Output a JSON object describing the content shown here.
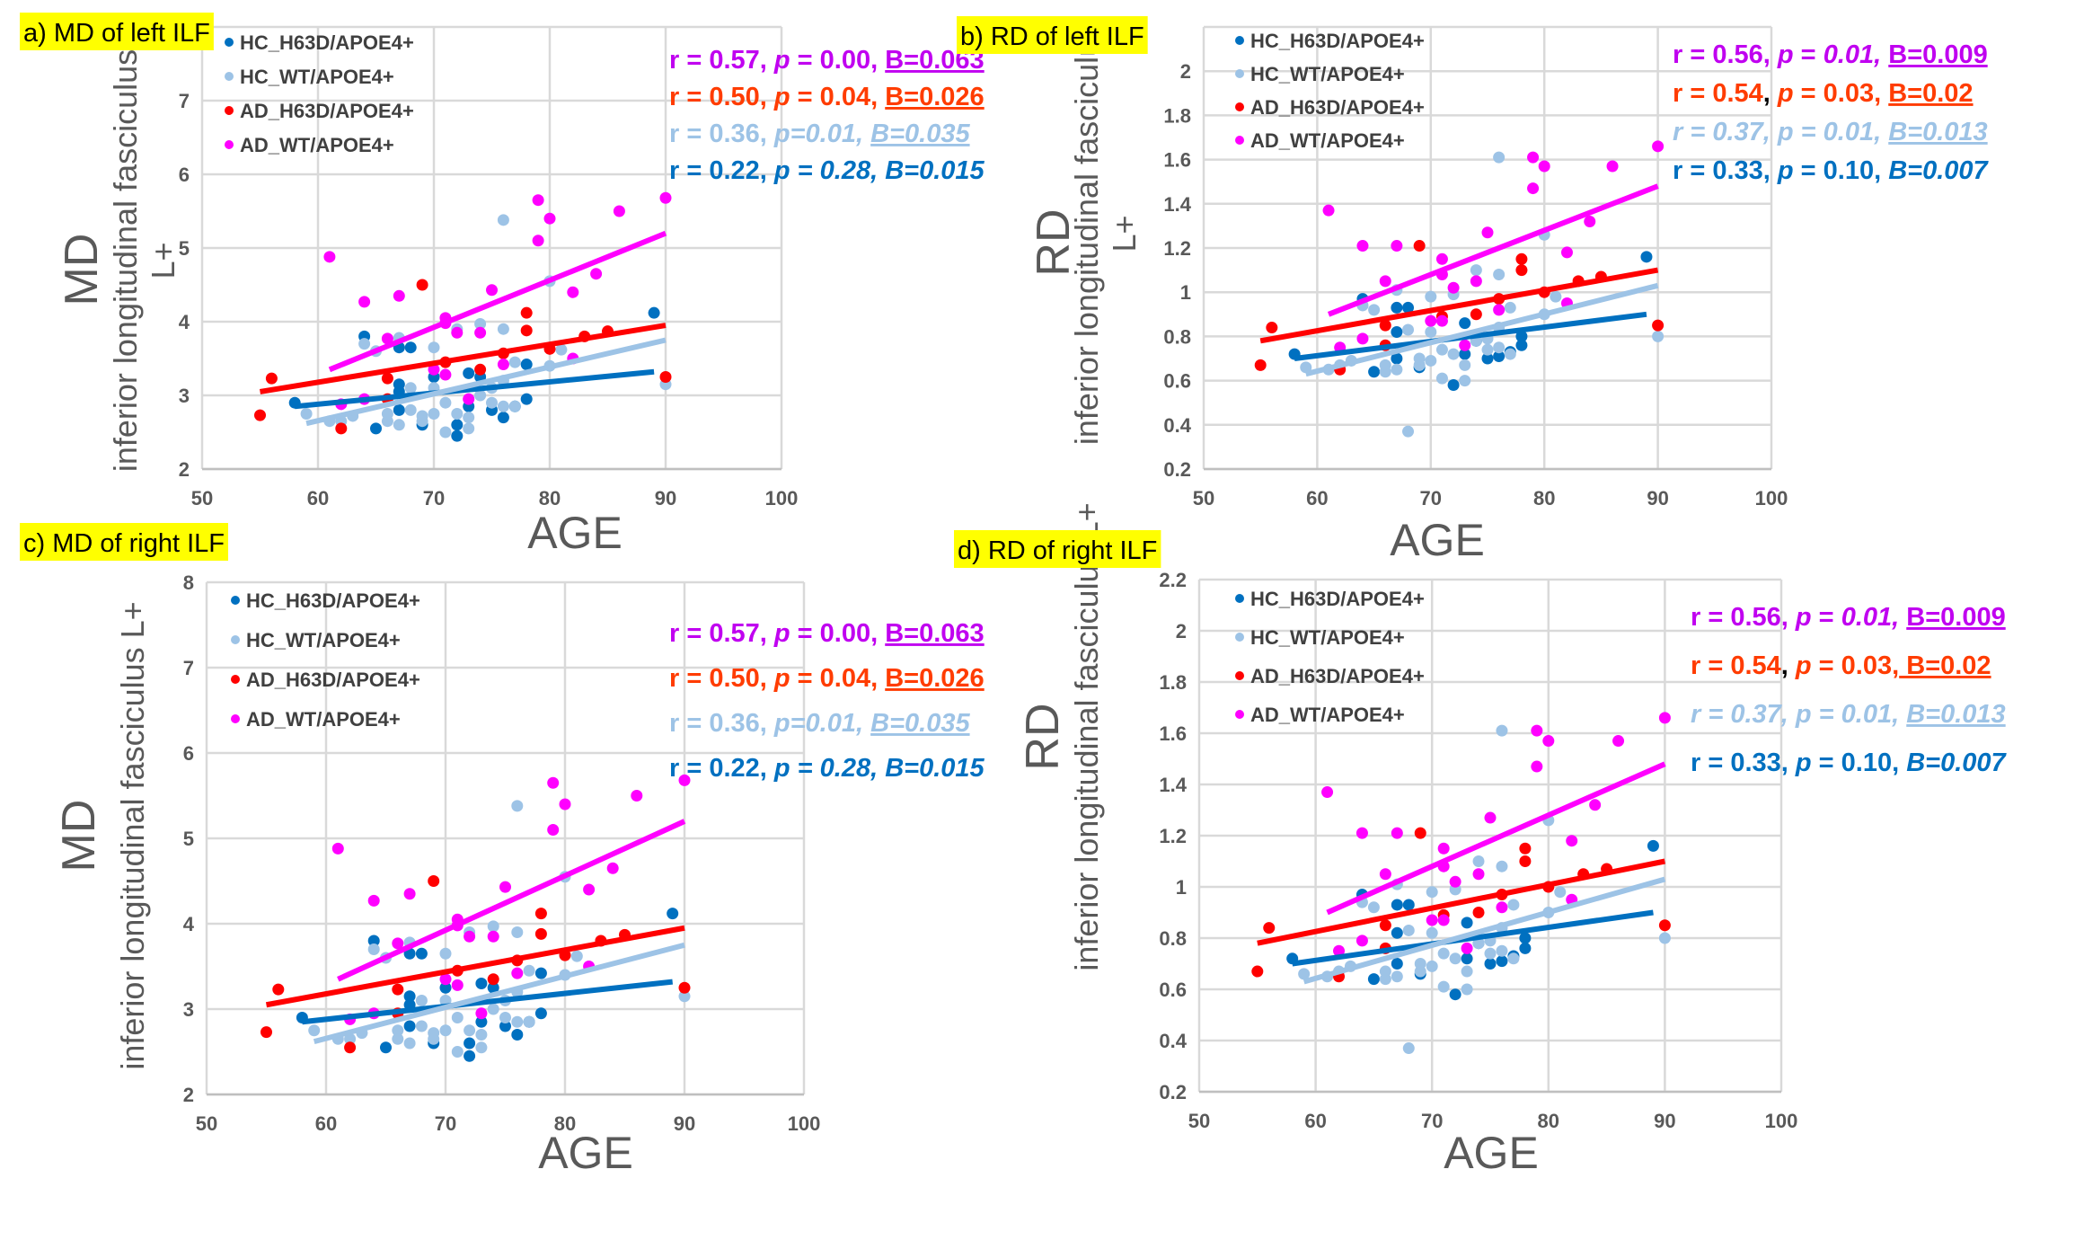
{
  "colors": {
    "HC_H63D": "#0070c0",
    "HC_WT": "#9dc3e6",
    "AD_H63D": "#ff0000",
    "AD_WT": "#ff00ff",
    "stat_AD_WT": "#c000f0",
    "stat_AD_H63D": "#ff3c00",
    "stat_HC_WT": "#9dc3e6",
    "stat_HC_H63D": "#0070c0",
    "title_bg": "#ffff00"
  },
  "chart_data": [
    {
      "id": "a",
      "type": "scatter",
      "title": "a) MD of left ILF",
      "ylabel_short": "MD",
      "ylabel": "inferior longitudinal fasciculus L+",
      "xlabel": "AGE",
      "xlim": [
        50,
        100
      ],
      "ylim": [
        2,
        8
      ],
      "xticks": [
        50,
        60,
        70,
        80,
        90,
        100
      ],
      "yticks": [
        2,
        3,
        4,
        5,
        6,
        7
      ],
      "grid": true,
      "legend_position": "top-left",
      "metric": "MD",
      "stats": [
        [
          {
            "t": "r = 0.57, ",
            "s": ""
          },
          {
            "t": "p",
            "s": "i"
          },
          {
            "t": " = 0.00, ",
            "s": ""
          },
          {
            "t": "B=0.063",
            "s": "u"
          }
        ],
        [
          {
            "t": "r = 0.50, ",
            "s": ""
          },
          {
            "t": "p",
            "s": "i"
          },
          {
            "t": " = 0.04, ",
            "s": ""
          },
          {
            "t": "B=0.026",
            "s": "u"
          }
        ],
        [
          {
            "t": "r = 0.36, ",
            "s": ""
          },
          {
            "t": "p=0.01, ",
            "s": "i"
          },
          {
            "t": "B=0.035",
            "s": "iu"
          }
        ],
        [
          {
            "t": "r = 0.22, ",
            "s": ""
          },
          {
            "t": "p",
            "s": "i"
          },
          {
            "t": " = 0.28, ",
            "s": "i"
          },
          {
            "t": "B=0.015",
            "s": "i"
          }
        ]
      ]
    },
    {
      "id": "b",
      "type": "scatter",
      "title": "b) RD of left ILF",
      "ylabel_short": "RD",
      "ylabel": "inferior longitudinal fasciculus L+",
      "xlabel": "AGE",
      "xlim": [
        50,
        100
      ],
      "ylim": [
        0.2,
        2.2
      ],
      "xticks": [
        50,
        60,
        70,
        80,
        90,
        100
      ],
      "yticks": [
        0.2,
        0.4,
        0.6,
        0.8,
        1,
        1.2,
        1.4,
        1.6,
        1.8,
        2
      ],
      "grid": true,
      "legend_position": "top-left",
      "metric": "RD",
      "stats": [
        [
          {
            "t": "r = 0.56, ",
            "s": ""
          },
          {
            "t": "p",
            "s": "i"
          },
          {
            "t": " = ",
            "s": ""
          },
          {
            "t": "0.01, ",
            "s": "i"
          },
          {
            "t": "B=0.009",
            "s": "u"
          }
        ],
        [
          {
            "t": "r = 0.54",
            "s": ""
          },
          {
            "t": ", ",
            "s": "k"
          },
          {
            "t": "p",
            "s": "i"
          },
          {
            "t": " = 0.03, ",
            "s": ""
          },
          {
            "t": "B=0.02",
            "s": "u"
          }
        ],
        [
          {
            "t": "r = 0.37, p = 0.01, ",
            "s": "i"
          },
          {
            "t": "B=0.013",
            "s": "iu"
          }
        ],
        [
          {
            "t": "r = 0.33, ",
            "s": ""
          },
          {
            "t": "p",
            "s": "i"
          },
          {
            "t": " = 0.10, ",
            "s": ""
          },
          {
            "t": "B=0.007",
            "s": "i"
          }
        ]
      ]
    },
    {
      "id": "c",
      "type": "scatter",
      "title": "c) MD of right ILF",
      "ylabel_short": "MD",
      "ylabel": "inferior longitudinal fasciculus L+",
      "xlabel": "AGE",
      "xlim": [
        50,
        100
      ],
      "ylim": [
        2,
        8
      ],
      "xticks": [
        50,
        60,
        70,
        80,
        90,
        100
      ],
      "yticks": [
        2,
        3,
        4,
        5,
        6,
        7,
        8
      ],
      "grid": true,
      "legend_position": "top-left",
      "metric": "MD",
      "stats": [
        [
          {
            "t": "r = 0.57, ",
            "s": ""
          },
          {
            "t": "p",
            "s": "i"
          },
          {
            "t": " = 0.00, ",
            "s": ""
          },
          {
            "t": "B=0.063",
            "s": "u"
          }
        ],
        [
          {
            "t": "r = 0.50, ",
            "s": ""
          },
          {
            "t": "p",
            "s": "i"
          },
          {
            "t": " = 0.04, ",
            "s": ""
          },
          {
            "t": "B=0.026",
            "s": "u"
          }
        ],
        [
          {
            "t": "r = 0.36, ",
            "s": ""
          },
          {
            "t": "p=0.01, ",
            "s": "i"
          },
          {
            "t": "B=0.035",
            "s": "iu"
          }
        ],
        [
          {
            "t": "r = 0.22, ",
            "s": ""
          },
          {
            "t": "p",
            "s": "i"
          },
          {
            "t": " = 0.28, ",
            "s": "i"
          },
          {
            "t": "B=0.015",
            "s": "i"
          }
        ]
      ]
    },
    {
      "id": "d",
      "type": "scatter",
      "title": "d) RD of right ILF",
      "ylabel_short": "RD",
      "ylabel": "inferior longitudinal fasciculus L+",
      "xlabel": "AGE",
      "xlim": [
        50,
        100
      ],
      "ylim": [
        0.2,
        2.2
      ],
      "xticks": [
        50,
        60,
        70,
        80,
        90,
        100
      ],
      "yticks": [
        0.2,
        0.4,
        0.6,
        0.8,
        1,
        1.2,
        1.4,
        1.6,
        1.8,
        2,
        2.2
      ],
      "grid": true,
      "legend_position": "top-left",
      "metric": "RD",
      "stats": [
        [
          {
            "t": "r = 0.56, ",
            "s": ""
          },
          {
            "t": "p",
            "s": "i"
          },
          {
            "t": " = ",
            "s": ""
          },
          {
            "t": "0.01, ",
            "s": "i"
          },
          {
            "t": "B=0.009",
            "s": "u"
          }
        ],
        [
          {
            "t": "r = 0.54",
            "s": ""
          },
          {
            "t": ", ",
            "s": "k"
          },
          {
            "t": "p",
            "s": "i"
          },
          {
            "t": " = 0.03,",
            "s": ""
          },
          {
            "t": " B=0.02",
            "s": "u"
          }
        ],
        [
          {
            "t": "r = 0.37, p = 0.01, ",
            "s": "i"
          },
          {
            "t": "B=0.013",
            "s": "iu"
          }
        ],
        [
          {
            "t": "r = 0.33, ",
            "s": ""
          },
          {
            "t": "p",
            "s": "i"
          },
          {
            "t": " = 0.10, ",
            "s": ""
          },
          {
            "t": "B=0.007",
            "s": "i"
          }
        ]
      ]
    }
  ],
  "series_names": [
    "HC_H63D/APOE4+",
    "HC_WT/APOE4+",
    "AD_H63D/APOE4+",
    "AD_WT/APOE4+"
  ],
  "series_keys": [
    "HC_H63D",
    "HC_WT",
    "AD_H63D",
    "AD_WT"
  ],
  "MD": {
    "HC_H63D": {
      "points": [
        [
          58,
          2.9
        ],
        [
          64,
          3.8
        ],
        [
          65,
          2.55
        ],
        [
          67,
          3.65
        ],
        [
          67,
          3.15
        ],
        [
          67,
          3.05
        ],
        [
          67,
          2.8
        ],
        [
          68,
          3.65
        ],
        [
          69,
          2.6
        ],
        [
          70,
          3.25
        ],
        [
          72,
          2.45
        ],
        [
          72,
          2.6
        ],
        [
          73,
          3.3
        ],
        [
          73,
          2.85
        ],
        [
          74,
          3.25
        ],
        [
          75,
          2.8
        ],
        [
          76,
          2.7
        ],
        [
          77,
          2.85
        ],
        [
          78,
          3.42
        ],
        [
          78,
          2.95
        ],
        [
          89,
          4.12
        ]
      ],
      "fit": [
        [
          58,
          2.85
        ],
        [
          89,
          3.32
        ]
      ]
    },
    "HC_WT": {
      "points": [
        [
          59,
          2.75
        ],
        [
          61,
          2.65
        ],
        [
          62,
          2.65
        ],
        [
          63,
          2.72
        ],
        [
          64,
          3.7
        ],
        [
          65,
          3.6
        ],
        [
          66,
          2.65
        ],
        [
          66,
          2.75
        ],
        [
          67,
          3.78
        ],
        [
          67,
          2.6
        ],
        [
          68,
          3.1
        ],
        [
          68,
          2.8
        ],
        [
          69,
          2.72
        ],
        [
          69,
          2.65
        ],
        [
          70,
          2.75
        ],
        [
          70,
          3.65
        ],
        [
          70,
          3.1
        ],
        [
          71,
          2.9
        ],
        [
          71,
          2.5
        ],
        [
          72,
          2.75
        ],
        [
          72,
          3.9
        ],
        [
          73,
          2.7
        ],
        [
          73,
          2.55
        ],
        [
          74,
          3.97
        ],
        [
          74,
          3.0
        ],
        [
          75,
          3.1
        ],
        [
          75,
          2.9
        ],
        [
          76,
          3.9
        ],
        [
          76,
          5.38
        ],
        [
          76,
          3.2
        ],
        [
          76,
          2.85
        ],
        [
          77,
          3.45
        ],
        [
          77,
          2.85
        ],
        [
          80,
          3.4
        ],
        [
          80,
          4.55
        ],
        [
          81,
          3.62
        ],
        [
          90,
          3.15
        ]
      ],
      "fit": [
        [
          59,
          2.62
        ],
        [
          90,
          3.75
        ]
      ]
    },
    "AD_H63D": {
      "points": [
        [
          55,
          2.73
        ],
        [
          56,
          3.23
        ],
        [
          62,
          2.55
        ],
        [
          66,
          3.23
        ],
        [
          66,
          2.95
        ],
        [
          69,
          4.5
        ],
        [
          71,
          3.45
        ],
        [
          74,
          3.35
        ],
        [
          76,
          3.57
        ],
        [
          78,
          4.12
        ],
        [
          78,
          3.88
        ],
        [
          80,
          3.63
        ],
        [
          83,
          3.8
        ],
        [
          85,
          3.87
        ],
        [
          90,
          3.25
        ]
      ],
      "fit": [
        [
          55,
          3.05
        ],
        [
          90,
          3.95
        ]
      ]
    },
    "AD_WT": {
      "points": [
        [
          61,
          4.88
        ],
        [
          62,
          2.88
        ],
        [
          64,
          4.27
        ],
        [
          64,
          2.95
        ],
        [
          66,
          3.77
        ],
        [
          67,
          4.35
        ],
        [
          70,
          3.35
        ],
        [
          71,
          4.05
        ],
        [
          71,
          3.98
        ],
        [
          71,
          3.28
        ],
        [
          72,
          3.85
        ],
        [
          73,
          2.95
        ],
        [
          74,
          3.85
        ],
        [
          75,
          4.43
        ],
        [
          76,
          3.42
        ],
        [
          79,
          5.65
        ],
        [
          79,
          5.1
        ],
        [
          80,
          5.4
        ],
        [
          82,
          4.4
        ],
        [
          82,
          3.5
        ],
        [
          84,
          4.65
        ],
        [
          86,
          5.5
        ],
        [
          90,
          5.68
        ]
      ],
      "fit": [
        [
          61,
          3.35
        ],
        [
          90,
          5.2
        ]
      ]
    }
  },
  "RD": {
    "HC_H63D": {
      "points": [
        [
          58,
          0.72
        ],
        [
          64,
          0.97
        ],
        [
          65,
          0.64
        ],
        [
          67,
          0.93
        ],
        [
          67,
          0.82
        ],
        [
          67,
          0.7
        ],
        [
          68,
          0.93
        ],
        [
          69,
          0.66
        ],
        [
          72,
          0.58
        ],
        [
          73,
          0.86
        ],
        [
          73,
          0.72
        ],
        [
          74,
          0.78
        ],
        [
          75,
          0.7
        ],
        [
          76,
          0.71
        ],
        [
          77,
          0.73
        ],
        [
          78,
          0.8
        ],
        [
          78,
          0.76
        ],
        [
          89,
          1.16
        ]
      ],
      "fit": [
        [
          58,
          0.7
        ],
        [
          89,
          0.9
        ]
      ]
    },
    "HC_WT": {
      "points": [
        [
          59,
          0.66
        ],
        [
          61,
          0.65
        ],
        [
          62,
          0.67
        ],
        [
          63,
          0.69
        ],
        [
          64,
          0.94
        ],
        [
          65,
          0.92
        ],
        [
          66,
          0.64
        ],
        [
          66,
          0.67
        ],
        [
          67,
          1.01
        ],
        [
          67,
          0.65
        ],
        [
          68,
          0.83
        ],
        [
          68,
          0.37
        ],
        [
          69,
          0.67
        ],
        [
          69,
          0.7
        ],
        [
          70,
          0.69
        ],
        [
          70,
          0.98
        ],
        [
          70,
          0.82
        ],
        [
          71,
          0.74
        ],
        [
          71,
          0.61
        ],
        [
          72,
          0.72
        ],
        [
          72,
          0.99
        ],
        [
          73,
          0.67
        ],
        [
          73,
          0.6
        ],
        [
          74,
          1.1
        ],
        [
          74,
          0.78
        ],
        [
          75,
          0.79
        ],
        [
          75,
          0.74
        ],
        [
          76,
          1.08
        ],
        [
          76,
          1.61
        ],
        [
          76,
          0.84
        ],
        [
          76,
          0.75
        ],
        [
          77,
          0.93
        ],
        [
          77,
          0.72
        ],
        [
          80,
          0.9
        ],
        [
          80,
          1.26
        ],
        [
          81,
          0.98
        ],
        [
          90,
          0.8
        ]
      ],
      "fit": [
        [
          59,
          0.63
        ],
        [
          90,
          1.03
        ]
      ]
    },
    "AD_H63D": {
      "points": [
        [
          55,
          0.67
        ],
        [
          56,
          0.84
        ],
        [
          62,
          0.65
        ],
        [
          66,
          0.85
        ],
        [
          66,
          0.76
        ],
        [
          69,
          1.21
        ],
        [
          71,
          0.89
        ],
        [
          74,
          0.9
        ],
        [
          76,
          0.97
        ],
        [
          78,
          1.15
        ],
        [
          78,
          1.1
        ],
        [
          80,
          1.0
        ],
        [
          83,
          1.05
        ],
        [
          85,
          1.07
        ],
        [
          90,
          0.85
        ]
      ],
      "fit": [
        [
          55,
          0.78
        ],
        [
          90,
          1.1
        ]
      ]
    },
    "AD_WT": {
      "points": [
        [
          61,
          1.37
        ],
        [
          62,
          0.75
        ],
        [
          64,
          1.21
        ],
        [
          64,
          0.79
        ],
        [
          66,
          1.05
        ],
        [
          67,
          1.21
        ],
        [
          70,
          0.87
        ],
        [
          71,
          1.15
        ],
        [
          71,
          1.08
        ],
        [
          71,
          0.87
        ],
        [
          72,
          1.02
        ],
        [
          73,
          0.76
        ],
        [
          74,
          1.05
        ],
        [
          75,
          1.27
        ],
        [
          76,
          0.92
        ],
        [
          79,
          1.61
        ],
        [
          79,
          1.47
        ],
        [
          80,
          1.57
        ],
        [
          82,
          1.18
        ],
        [
          82,
          0.95
        ],
        [
          84,
          1.32
        ],
        [
          86,
          1.57
        ],
        [
          90,
          1.66
        ]
      ],
      "fit": [
        [
          61,
          0.9
        ],
        [
          90,
          1.48
        ]
      ]
    }
  }
}
